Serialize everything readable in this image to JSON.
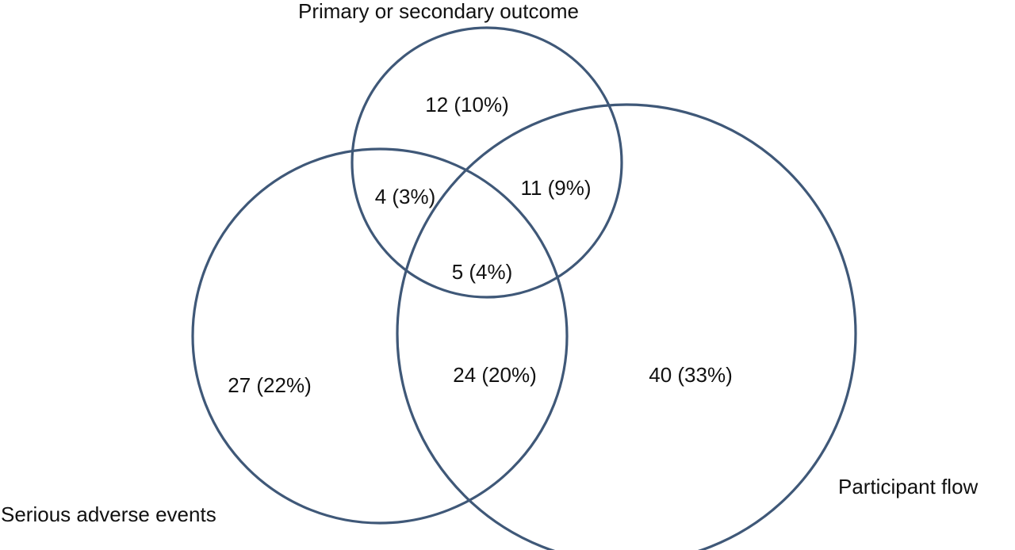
{
  "diagram": {
    "type": "venn",
    "stroke_color": "#3f5878",
    "sets": [
      {
        "id": "primary",
        "label": "Primary or secondary outcome"
      },
      {
        "id": "adverse",
        "label": "Serious adverse events"
      },
      {
        "id": "flow",
        "label": "Participant flow"
      }
    ],
    "regions": {
      "primary_only": "12 (10%)",
      "primary_adverse": "4 (3%)",
      "primary_flow": "11 (9%)",
      "all_three": "5 (4%)",
      "adverse_only": "27 (22%)",
      "adverse_flow": "24 (20%)",
      "flow_only": "40 (33%)"
    }
  }
}
